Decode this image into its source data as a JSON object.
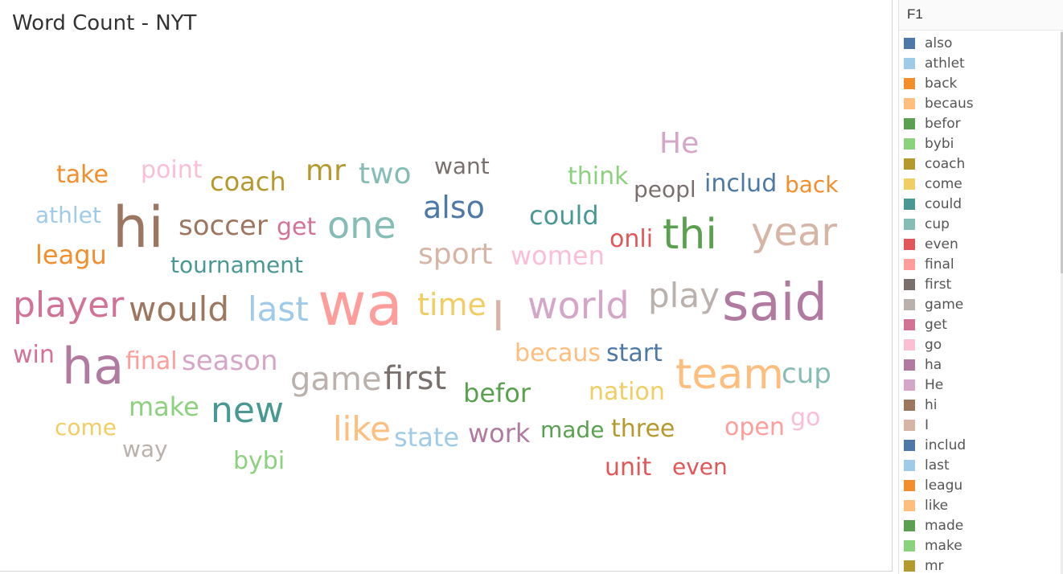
{
  "title": "Word Count - NYT",
  "legend": {
    "title": "F1",
    "items": [
      {
        "label": "also",
        "color": "#4e79a7"
      },
      {
        "label": "athlet",
        "color": "#a0cbe8"
      },
      {
        "label": "back",
        "color": "#f28e2b"
      },
      {
        "label": "becaus",
        "color": "#ffbe7d"
      },
      {
        "label": "befor",
        "color": "#59a14f"
      },
      {
        "label": "bybi",
        "color": "#8cd17d"
      },
      {
        "label": "coach",
        "color": "#b6992d"
      },
      {
        "label": "come",
        "color": "#f1ce63"
      },
      {
        "label": "could",
        "color": "#499894"
      },
      {
        "label": "cup",
        "color": "#86bcb6"
      },
      {
        "label": "even",
        "color": "#e15759"
      },
      {
        "label": "final",
        "color": "#ff9d9a"
      },
      {
        "label": "first",
        "color": "#79706e"
      },
      {
        "label": "game",
        "color": "#bab0ac"
      },
      {
        "label": "get",
        "color": "#d37295"
      },
      {
        "label": "go",
        "color": "#fabfd2"
      },
      {
        "label": "ha",
        "color": "#b07aa1"
      },
      {
        "label": "He",
        "color": "#d4a6c8"
      },
      {
        "label": "hi",
        "color": "#9d7660"
      },
      {
        "label": "I",
        "color": "#d7b5a6"
      },
      {
        "label": "includ",
        "color": "#4e79a7"
      },
      {
        "label": "last",
        "color": "#a0cbe8"
      },
      {
        "label": "leagu",
        "color": "#f28e2b"
      },
      {
        "label": "like",
        "color": "#ffbe7d"
      },
      {
        "label": "made",
        "color": "#59a14f"
      },
      {
        "label": "make",
        "color": "#8cd17d"
      },
      {
        "label": "mr",
        "color": "#b6992d"
      }
    ]
  },
  "chart_data": {
    "type": "wordcloud",
    "words": [
      {
        "text": "wa",
        "size": 74,
        "color": "#ff9d9a"
      },
      {
        "text": "said",
        "size": 64,
        "color": "#b07aa1"
      },
      {
        "text": "hi",
        "size": 70,
        "color": "#9d7660"
      },
      {
        "text": "ha",
        "size": 62,
        "color": "#b07aa1"
      },
      {
        "text": "team",
        "size": 52,
        "color": "#ffbe7d"
      },
      {
        "text": "thi",
        "size": 52,
        "color": "#59a14f"
      },
      {
        "text": "year",
        "size": 48,
        "color": "#d7b5a6"
      },
      {
        "text": "world",
        "size": 46,
        "color": "#d4a6c8"
      },
      {
        "text": "one",
        "size": 46,
        "color": "#86bcb6"
      },
      {
        "text": "new",
        "size": 44,
        "color": "#499894"
      },
      {
        "text": "player",
        "size": 44,
        "color": "#d37295"
      },
      {
        "text": "would",
        "size": 42,
        "color": "#9d7660"
      },
      {
        "text": "last",
        "size": 42,
        "color": "#a0cbe8"
      },
      {
        "text": "play",
        "size": 42,
        "color": "#bab0ac"
      },
      {
        "text": "game",
        "size": 40,
        "color": "#bab0ac"
      },
      {
        "text": "first",
        "size": 40,
        "color": "#79706e"
      },
      {
        "text": "I",
        "size": 52,
        "color": "#d7b5a6"
      },
      {
        "text": "like",
        "size": 42,
        "color": "#ffbe7d"
      },
      {
        "text": "also",
        "size": 38,
        "color": "#4e79a7"
      },
      {
        "text": "time",
        "size": 38,
        "color": "#f1ce63"
      },
      {
        "text": "He",
        "size": 36,
        "color": "#d4a6c8"
      },
      {
        "text": "mr",
        "size": 36,
        "color": "#b6992d"
      },
      {
        "text": "two",
        "size": 36,
        "color": "#86bcb6"
      },
      {
        "text": "sport",
        "size": 36,
        "color": "#d7b5a6"
      },
      {
        "text": "soccer",
        "size": 34,
        "color": "#9d7660"
      },
      {
        "text": "season",
        "size": 34,
        "color": "#d4a6c8"
      },
      {
        "text": "cup",
        "size": 34,
        "color": "#86bcb6"
      },
      {
        "text": "could",
        "size": 32,
        "color": "#499894"
      },
      {
        "text": "work",
        "size": 32,
        "color": "#b07aa1"
      },
      {
        "text": "women",
        "size": 32,
        "color": "#fabfd2"
      },
      {
        "text": "make",
        "size": 32,
        "color": "#8cd17d"
      },
      {
        "text": "leagu",
        "size": 32,
        "color": "#f28e2b"
      },
      {
        "text": "coach",
        "size": 32,
        "color": "#b6992d"
      },
      {
        "text": "befor",
        "size": 32,
        "color": "#59a14f"
      },
      {
        "text": "state",
        "size": 32,
        "color": "#a0cbe8"
      },
      {
        "text": "includ",
        "size": 30,
        "color": "#4e79a7"
      },
      {
        "text": "get",
        "size": 30,
        "color": "#d37295"
      },
      {
        "text": "start",
        "size": 30,
        "color": "#4e79a7"
      },
      {
        "text": "onli",
        "size": 30,
        "color": "#e15759"
      },
      {
        "text": "becaus",
        "size": 30,
        "color": "#ffbe7d"
      },
      {
        "text": "nation",
        "size": 30,
        "color": "#f1ce63"
      },
      {
        "text": "final",
        "size": 30,
        "color": "#ff9d9a"
      },
      {
        "text": "athlet",
        "size": 28,
        "color": "#a0cbe8"
      },
      {
        "text": "point",
        "size": 30,
        "color": "#fabfd2"
      },
      {
        "text": "take",
        "size": 30,
        "color": "#f28e2b"
      },
      {
        "text": "want",
        "size": 28,
        "color": "#79706e"
      },
      {
        "text": "think",
        "size": 30,
        "color": "#8cd17d"
      },
      {
        "text": "peopl",
        "size": 28,
        "color": "#79706e"
      },
      {
        "text": "back",
        "size": 28,
        "color": "#f28e2b"
      },
      {
        "text": "tournament",
        "size": 28,
        "color": "#499894"
      },
      {
        "text": "win",
        "size": 30,
        "color": "#d37295"
      },
      {
        "text": "bybi",
        "size": 30,
        "color": "#8cd17d"
      },
      {
        "text": "made",
        "size": 28,
        "color": "#59a14f"
      },
      {
        "text": "three",
        "size": 30,
        "color": "#b6992d"
      },
      {
        "text": "open",
        "size": 30,
        "color": "#ff9d9a"
      },
      {
        "text": "go",
        "size": 30,
        "color": "#fabfd2"
      },
      {
        "text": "come",
        "size": 28,
        "color": "#f1ce63"
      },
      {
        "text": "way",
        "size": 28,
        "color": "#bab0ac"
      },
      {
        "text": "unit",
        "size": 30,
        "color": "#e15759"
      },
      {
        "text": "even",
        "size": 28,
        "color": "#e15759"
      }
    ]
  }
}
